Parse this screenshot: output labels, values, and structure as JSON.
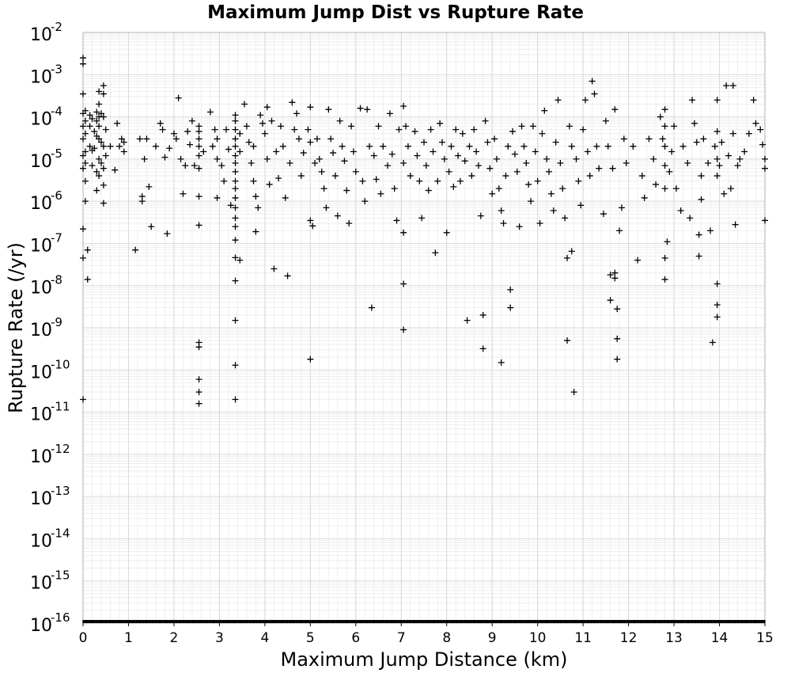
{
  "chart_data": {
    "type": "scatter",
    "title": "Maximum Jump Dist vs Rupture Rate",
    "xlabel": "Maximum Jump Distance (km)",
    "ylabel": "Rupture Rate (/yr)",
    "xlim": [
      0,
      15
    ],
    "ylim_exponent": [
      -16,
      -2
    ],
    "y_scale": "log",
    "grid": true,
    "marker": "plus",
    "x_ticks": [
      "0",
      "1",
      "2",
      "3",
      "4",
      "5",
      "6",
      "7",
      "8",
      "9",
      "10",
      "11",
      "12",
      "13",
      "14",
      "15"
    ],
    "y_ticks": [
      {
        "base": "10",
        "exp": "-2"
      },
      {
        "base": "10",
        "exp": "-3"
      },
      {
        "base": "10",
        "exp": "-4"
      },
      {
        "base": "10",
        "exp": "-5"
      },
      {
        "base": "10",
        "exp": "-6"
      },
      {
        "base": "10",
        "exp": "-7"
      },
      {
        "base": "10",
        "exp": "-8"
      },
      {
        "base": "10",
        "exp": "-9"
      },
      {
        "base": "10",
        "exp": "-10"
      },
      {
        "base": "10",
        "exp": "-11"
      },
      {
        "base": "10",
        "exp": "-12"
      },
      {
        "base": "10",
        "exp": "-13"
      },
      {
        "base": "10",
        "exp": "-14"
      },
      {
        "base": "10",
        "exp": "-15"
      },
      {
        "base": "10",
        "exp": "-16"
      }
    ],
    "points": [
      [
        0.0,
        0.0025
      ],
      [
        0.0,
        0.0018
      ],
      [
        0.0,
        0.00035
      ],
      [
        0.0,
        0.00012
      ],
      [
        0.0,
        6e-05
      ],
      [
        0.0,
        3e-05
      ],
      [
        0.0,
        1.2e-05
      ],
      [
        0.0,
        6e-06
      ],
      [
        0.0,
        2.2e-07
      ],
      [
        0.0,
        4.5e-08
      ],
      [
        0.0,
        2e-11
      ],
      [
        0.05,
        0.00014
      ],
      [
        0.05,
        8e-05
      ],
      [
        0.05,
        4e-05
      ],
      [
        0.05,
        1.5e-05
      ],
      [
        0.05,
        8e-06
      ],
      [
        0.05,
        3e-06
      ],
      [
        0.05,
        1e-06
      ],
      [
        0.1,
        7e-08
      ],
      [
        0.1,
        1.4e-08
      ],
      [
        0.15,
        0.00011
      ],
      [
        0.15,
        6e-05
      ],
      [
        0.15,
        2e-05
      ],
      [
        0.2,
        9e-05
      ],
      [
        0.2,
        1.6e-05
      ],
      [
        0.2,
        7e-06
      ],
      [
        0.25,
        4.5e-05
      ],
      [
        0.25,
        1.8e-05
      ],
      [
        0.3,
        0.00013
      ],
      [
        0.3,
        8e-05
      ],
      [
        0.3,
        3.5e-05
      ],
      [
        0.3,
        5e-06
      ],
      [
        0.3,
        1.8e-06
      ],
      [
        0.35,
        0.0004
      ],
      [
        0.35,
        0.0002
      ],
      [
        0.35,
        0.0001
      ],
      [
        0.35,
        6e-05
      ],
      [
        0.35,
        3e-05
      ],
      [
        0.35,
        1e-05
      ],
      [
        0.35,
        4e-06
      ],
      [
        0.4,
        0.00012
      ],
      [
        0.4,
        2.5e-05
      ],
      [
        0.4,
        8e-06
      ],
      [
        0.45,
        0.00055
      ],
      [
        0.45,
        0.00035
      ],
      [
        0.45,
        0.0001
      ],
      [
        0.45,
        2e-05
      ],
      [
        0.45,
        6e-06
      ],
      [
        0.45,
        2.4e-06
      ],
      [
        0.45,
        9e-07
      ],
      [
        0.5,
        5e-05
      ],
      [
        0.5,
        1.2e-05
      ],
      [
        0.6,
        2e-05
      ],
      [
        0.7,
        5.5e-06
      ],
      [
        0.75,
        7e-05
      ],
      [
        0.8,
        2e-05
      ],
      [
        0.85,
        3e-05
      ],
      [
        0.9,
        2.5e-05
      ],
      [
        0.9,
        1.5e-05
      ],
      [
        1.15,
        7e-08
      ],
      [
        1.25,
        3e-05
      ],
      [
        1.3,
        1.3e-06
      ],
      [
        1.3,
        1e-06
      ],
      [
        1.35,
        1e-05
      ],
      [
        1.4,
        3e-05
      ],
      [
        1.45,
        2.2e-06
      ],
      [
        1.5,
        2.5e-07
      ],
      [
        1.6,
        2e-05
      ],
      [
        1.7,
        7e-05
      ],
      [
        1.75,
        5e-05
      ],
      [
        1.8,
        1.1e-05
      ],
      [
        1.85,
        1.7e-07
      ],
      [
        1.9,
        1.8e-05
      ],
      [
        2.0,
        4e-05
      ],
      [
        2.05,
        3e-05
      ],
      [
        2.1,
        0.00028
      ],
      [
        2.15,
        1e-05
      ],
      [
        2.2,
        1.5e-06
      ],
      [
        2.25,
        7e-06
      ],
      [
        2.3,
        4.5e-05
      ],
      [
        2.35,
        2.2e-05
      ],
      [
        2.4,
        8e-05
      ],
      [
        2.45,
        7e-06
      ],
      [
        2.55,
        6e-05
      ],
      [
        2.55,
        4.5e-05
      ],
      [
        2.55,
        3e-05
      ],
      [
        2.55,
        2e-05
      ],
      [
        2.55,
        1.2e-05
      ],
      [
        2.55,
        6e-06
      ],
      [
        2.55,
        1.3e-06
      ],
      [
        2.55,
        2.7e-07
      ],
      [
        2.55,
        4.5e-10
      ],
      [
        2.55,
        3.5e-10
      ],
      [
        2.55,
        6e-11
      ],
      [
        2.55,
        3e-11
      ],
      [
        2.55,
        1.6e-11
      ],
      [
        2.65,
        1.5e-05
      ],
      [
        2.8,
        0.00013
      ],
      [
        2.85,
        2e-05
      ],
      [
        2.9,
        5e-05
      ],
      [
        2.95,
        3e-05
      ],
      [
        2.95,
        1e-05
      ],
      [
        2.95,
        1.2e-06
      ],
      [
        3.05,
        7e-06
      ],
      [
        3.1,
        3e-06
      ],
      [
        3.15,
        5e-05
      ],
      [
        3.2,
        1.7e-05
      ],
      [
        3.25,
        8e-07
      ],
      [
        3.35,
        0.00011
      ],
      [
        3.35,
        8e-05
      ],
      [
        3.35,
        5e-05
      ],
      [
        3.35,
        3e-05
      ],
      [
        3.35,
        2e-05
      ],
      [
        3.35,
        1.2e-05
      ],
      [
        3.35,
        8e-06
      ],
      [
        3.35,
        5e-06
      ],
      [
        3.35,
        3e-06
      ],
      [
        3.35,
        2e-06
      ],
      [
        3.35,
        1.2e-06
      ],
      [
        3.35,
        7e-07
      ],
      [
        3.35,
        4e-07
      ],
      [
        3.35,
        2.5e-07
      ],
      [
        3.35,
        1.2e-07
      ],
      [
        3.35,
        4.6e-08
      ],
      [
        3.35,
        1.3e-08
      ],
      [
        3.35,
        1.5e-09
      ],
      [
        3.35,
        1.3e-10
      ],
      [
        3.35,
        2e-11
      ],
      [
        3.45,
        4e-05
      ],
      [
        3.45,
        1.5e-05
      ],
      [
        3.45,
        4e-08
      ],
      [
        3.55,
        0.0002
      ],
      [
        3.6,
        6e-05
      ],
      [
        3.65,
        2.5e-05
      ],
      [
        3.7,
        8e-06
      ],
      [
        3.75,
        2e-05
      ],
      [
        3.75,
        3e-06
      ],
      [
        3.8,
        1.3e-06
      ],
      [
        3.8,
        1.9e-07
      ],
      [
        3.85,
        7e-07
      ],
      [
        3.9,
        0.00011
      ],
      [
        3.95,
        7e-05
      ],
      [
        4.0,
        4e-05
      ],
      [
        4.05,
        0.00017
      ],
      [
        4.05,
        1e-05
      ],
      [
        4.1,
        2.5e-06
      ],
      [
        4.15,
        8e-05
      ],
      [
        4.2,
        2.5e-08
      ],
      [
        4.25,
        1.5e-05
      ],
      [
        4.3,
        3.5e-06
      ],
      [
        4.35,
        6e-05
      ],
      [
        4.4,
        2e-05
      ],
      [
        4.45,
        1.2e-06
      ],
      [
        4.5,
        1.7e-08
      ],
      [
        4.55,
        8e-06
      ],
      [
        4.6,
        0.00022
      ],
      [
        4.65,
        5e-05
      ],
      [
        4.7,
        0.00012
      ],
      [
        4.75,
        3e-05
      ],
      [
        4.8,
        4e-06
      ],
      [
        4.85,
        1.4e-05
      ],
      [
        4.95,
        5e-05
      ],
      [
        5.0,
        0.00017
      ],
      [
        5.0,
        2.5e-05
      ],
      [
        5.0,
        3.5e-07
      ],
      [
        5.0,
        1.8e-10
      ],
      [
        5.05,
        2.6e-07
      ],
      [
        5.1,
        8e-06
      ],
      [
        5.15,
        3e-05
      ],
      [
        5.2,
        1e-05
      ],
      [
        5.25,
        5e-06
      ],
      [
        5.3,
        2e-06
      ],
      [
        5.35,
        7e-07
      ],
      [
        5.4,
        0.00015
      ],
      [
        5.45,
        3e-05
      ],
      [
        5.5,
        1.4e-05
      ],
      [
        5.55,
        4e-06
      ],
      [
        5.6,
        4.5e-07
      ],
      [
        5.65,
        8e-05
      ],
      [
        5.7,
        2e-05
      ],
      [
        5.75,
        9e-06
      ],
      [
        5.8,
        1.8e-06
      ],
      [
        5.85,
        3e-07
      ],
      [
        5.9,
        6e-05
      ],
      [
        5.95,
        1.5e-05
      ],
      [
        6.0,
        5e-06
      ],
      [
        6.1,
        0.00016
      ],
      [
        6.15,
        3e-06
      ],
      [
        6.2,
        1e-06
      ],
      [
        6.25,
        0.00015
      ],
      [
        6.3,
        2e-05
      ],
      [
        6.35,
        3e-09
      ],
      [
        6.4,
        1.2e-05
      ],
      [
        6.45,
        3.3e-06
      ],
      [
        6.5,
        6e-05
      ],
      [
        6.55,
        1.5e-06
      ],
      [
        6.6,
        2e-05
      ],
      [
        6.7,
        7e-06
      ],
      [
        6.75,
        0.00012
      ],
      [
        6.8,
        1.3e-05
      ],
      [
        6.85,
        2e-06
      ],
      [
        6.9,
        3.5e-07
      ],
      [
        6.95,
        5e-05
      ],
      [
        7.05,
        0.00018
      ],
      [
        7.05,
        8e-06
      ],
      [
        7.05,
        1.8e-07
      ],
      [
        7.05,
        1.1e-08
      ],
      [
        7.05,
        9e-10
      ],
      [
        7.1,
        6e-05
      ],
      [
        7.15,
        2e-05
      ],
      [
        7.2,
        4e-06
      ],
      [
        7.3,
        4.5e-05
      ],
      [
        7.35,
        1.2e-05
      ],
      [
        7.4,
        3e-06
      ],
      [
        7.45,
        4e-07
      ],
      [
        7.5,
        2.5e-05
      ],
      [
        7.55,
        7e-06
      ],
      [
        7.6,
        1.8e-06
      ],
      [
        7.65,
        5e-05
      ],
      [
        7.7,
        1.5e-05
      ],
      [
        7.75,
        6e-08
      ],
      [
        7.8,
        3e-06
      ],
      [
        7.85,
        7e-05
      ],
      [
        7.9,
        2.5e-05
      ],
      [
        7.95,
        1e-05
      ],
      [
        8.0,
        1.8e-07
      ],
      [
        8.05,
        5e-06
      ],
      [
        8.1,
        2e-05
      ],
      [
        8.15,
        2.2e-06
      ],
      [
        8.2,
        5e-05
      ],
      [
        8.25,
        1.2e-05
      ],
      [
        8.3,
        3e-06
      ],
      [
        8.35,
        4e-05
      ],
      [
        8.4,
        9e-06
      ],
      [
        8.45,
        1.5e-09
      ],
      [
        8.5,
        2e-05
      ],
      [
        8.55,
        4e-06
      ],
      [
        8.6,
        5e-05
      ],
      [
        8.65,
        1.5e-05
      ],
      [
        8.7,
        7e-06
      ],
      [
        8.75,
        4.5e-07
      ],
      [
        8.8,
        2e-09
      ],
      [
        8.8,
        3.2e-10
      ],
      [
        8.85,
        8e-05
      ],
      [
        8.9,
        2.5e-05
      ],
      [
        8.95,
        6e-06
      ],
      [
        9.0,
        1.5e-06
      ],
      [
        9.05,
        3e-05
      ],
      [
        9.1,
        1e-05
      ],
      [
        9.15,
        2e-06
      ],
      [
        9.2,
        6e-07
      ],
      [
        9.2,
        1.5e-10
      ],
      [
        9.25,
        3e-07
      ],
      [
        9.3,
        4e-06
      ],
      [
        9.35,
        2e-05
      ],
      [
        9.4,
        8e-09
      ],
      [
        9.4,
        3e-09
      ],
      [
        9.45,
        4.5e-05
      ],
      [
        9.5,
        1.3e-05
      ],
      [
        9.55,
        5e-06
      ],
      [
        9.6,
        2.5e-07
      ],
      [
        9.65,
        6e-05
      ],
      [
        9.7,
        2e-05
      ],
      [
        9.75,
        8e-06
      ],
      [
        9.8,
        2.5e-06
      ],
      [
        9.85,
        1e-06
      ],
      [
        9.9,
        6e-05
      ],
      [
        9.95,
        1.5e-05
      ],
      [
        10.0,
        3e-06
      ],
      [
        10.05,
        3e-07
      ],
      [
        10.1,
        4e-05
      ],
      [
        10.15,
        0.00014
      ],
      [
        10.2,
        1e-05
      ],
      [
        10.25,
        5e-06
      ],
      [
        10.3,
        1.5e-06
      ],
      [
        10.35,
        6e-07
      ],
      [
        10.4,
        2.5e-05
      ],
      [
        10.45,
        0.00025
      ],
      [
        10.5,
        8e-06
      ],
      [
        10.55,
        2e-06
      ],
      [
        10.6,
        4e-07
      ],
      [
        10.65,
        4.5e-08
      ],
      [
        10.65,
        5e-10
      ],
      [
        10.7,
        6e-05
      ],
      [
        10.75,
        2e-05
      ],
      [
        10.75,
        6.5e-08
      ],
      [
        10.8,
        3e-11
      ],
      [
        10.85,
        1e-05
      ],
      [
        10.9,
        3e-06
      ],
      [
        10.95,
        8e-07
      ],
      [
        11.0,
        5e-05
      ],
      [
        11.05,
        0.00025
      ],
      [
        11.1,
        1.5e-05
      ],
      [
        11.15,
        4e-06
      ],
      [
        11.2,
        0.0007
      ],
      [
        11.25,
        0.00035
      ],
      [
        11.3,
        2e-05
      ],
      [
        11.35,
        6e-06
      ],
      [
        11.45,
        5e-07
      ],
      [
        11.5,
        8e-05
      ],
      [
        11.55,
        2e-05
      ],
      [
        11.6,
        1.8e-08
      ],
      [
        11.6,
        4.5e-09
      ],
      [
        11.65,
        6e-06
      ],
      [
        11.7,
        0.00015
      ],
      [
        11.7,
        2e-08
      ],
      [
        11.7,
        1.5e-08
      ],
      [
        11.75,
        2.8e-09
      ],
      [
        11.75,
        5.5e-10
      ],
      [
        11.75,
        1.8e-10
      ],
      [
        11.8,
        2e-07
      ],
      [
        11.85,
        7e-07
      ],
      [
        11.9,
        3e-05
      ],
      [
        11.95,
        8e-06
      ],
      [
        12.1,
        2e-05
      ],
      [
        12.2,
        4e-08
      ],
      [
        12.3,
        4e-06
      ],
      [
        12.35,
        1.2e-06
      ],
      [
        12.45,
        3e-05
      ],
      [
        12.55,
        1e-05
      ],
      [
        12.6,
        2.5e-06
      ],
      [
        12.7,
        0.0001
      ],
      [
        12.75,
        3e-05
      ],
      [
        12.8,
        0.00015
      ],
      [
        12.8,
        6e-05
      ],
      [
        12.8,
        2e-05
      ],
      [
        12.8,
        7e-06
      ],
      [
        12.8,
        2e-06
      ],
      [
        12.8,
        4.5e-08
      ],
      [
        12.8,
        1.4e-08
      ],
      [
        12.85,
        1.1e-07
      ],
      [
        12.9,
        5e-06
      ],
      [
        12.95,
        1.5e-05
      ],
      [
        13.0,
        6e-05
      ],
      [
        13.05,
        2e-06
      ],
      [
        13.15,
        6e-07
      ],
      [
        13.2,
        2e-05
      ],
      [
        13.3,
        8e-06
      ],
      [
        13.35,
        4e-07
      ],
      [
        13.4,
        0.00025
      ],
      [
        13.45,
        7e-05
      ],
      [
        13.5,
        2.5e-05
      ],
      [
        13.55,
        5e-08
      ],
      [
        13.55,
        1.6e-07
      ],
      [
        13.6,
        4e-06
      ],
      [
        13.6,
        1.1e-06
      ],
      [
        13.65,
        3e-05
      ],
      [
        13.75,
        8e-06
      ],
      [
        13.8,
        2e-07
      ],
      [
        13.85,
        4.5e-10
      ],
      [
        13.9,
        2e-05
      ],
      [
        13.95,
        0.00025
      ],
      [
        13.95,
        4.5e-05
      ],
      [
        13.95,
        1e-05
      ],
      [
        13.95,
        4e-06
      ],
      [
        13.95,
        1.1e-08
      ],
      [
        13.95,
        3.5e-09
      ],
      [
        13.95,
        1.8e-09
      ],
      [
        14.0,
        7e-06
      ],
      [
        14.05,
        2.5e-05
      ],
      [
        14.1,
        1.5e-06
      ],
      [
        14.15,
        0.00055
      ],
      [
        14.2,
        1.2e-05
      ],
      [
        14.25,
        2e-06
      ],
      [
        14.3,
        0.00055
      ],
      [
        14.3,
        4e-05
      ],
      [
        14.35,
        2.8e-07
      ],
      [
        14.4,
        7e-06
      ],
      [
        14.45,
        1e-05
      ],
      [
        14.55,
        1.5e-05
      ],
      [
        14.65,
        4e-05
      ],
      [
        14.75,
        0.00025
      ],
      [
        14.8,
        7e-05
      ],
      [
        14.9,
        5e-05
      ],
      [
        14.95,
        2.2e-05
      ],
      [
        15.0,
        1e-05
      ],
      [
        15.0,
        6e-06
      ],
      [
        15.0,
        3.5e-07
      ]
    ]
  }
}
